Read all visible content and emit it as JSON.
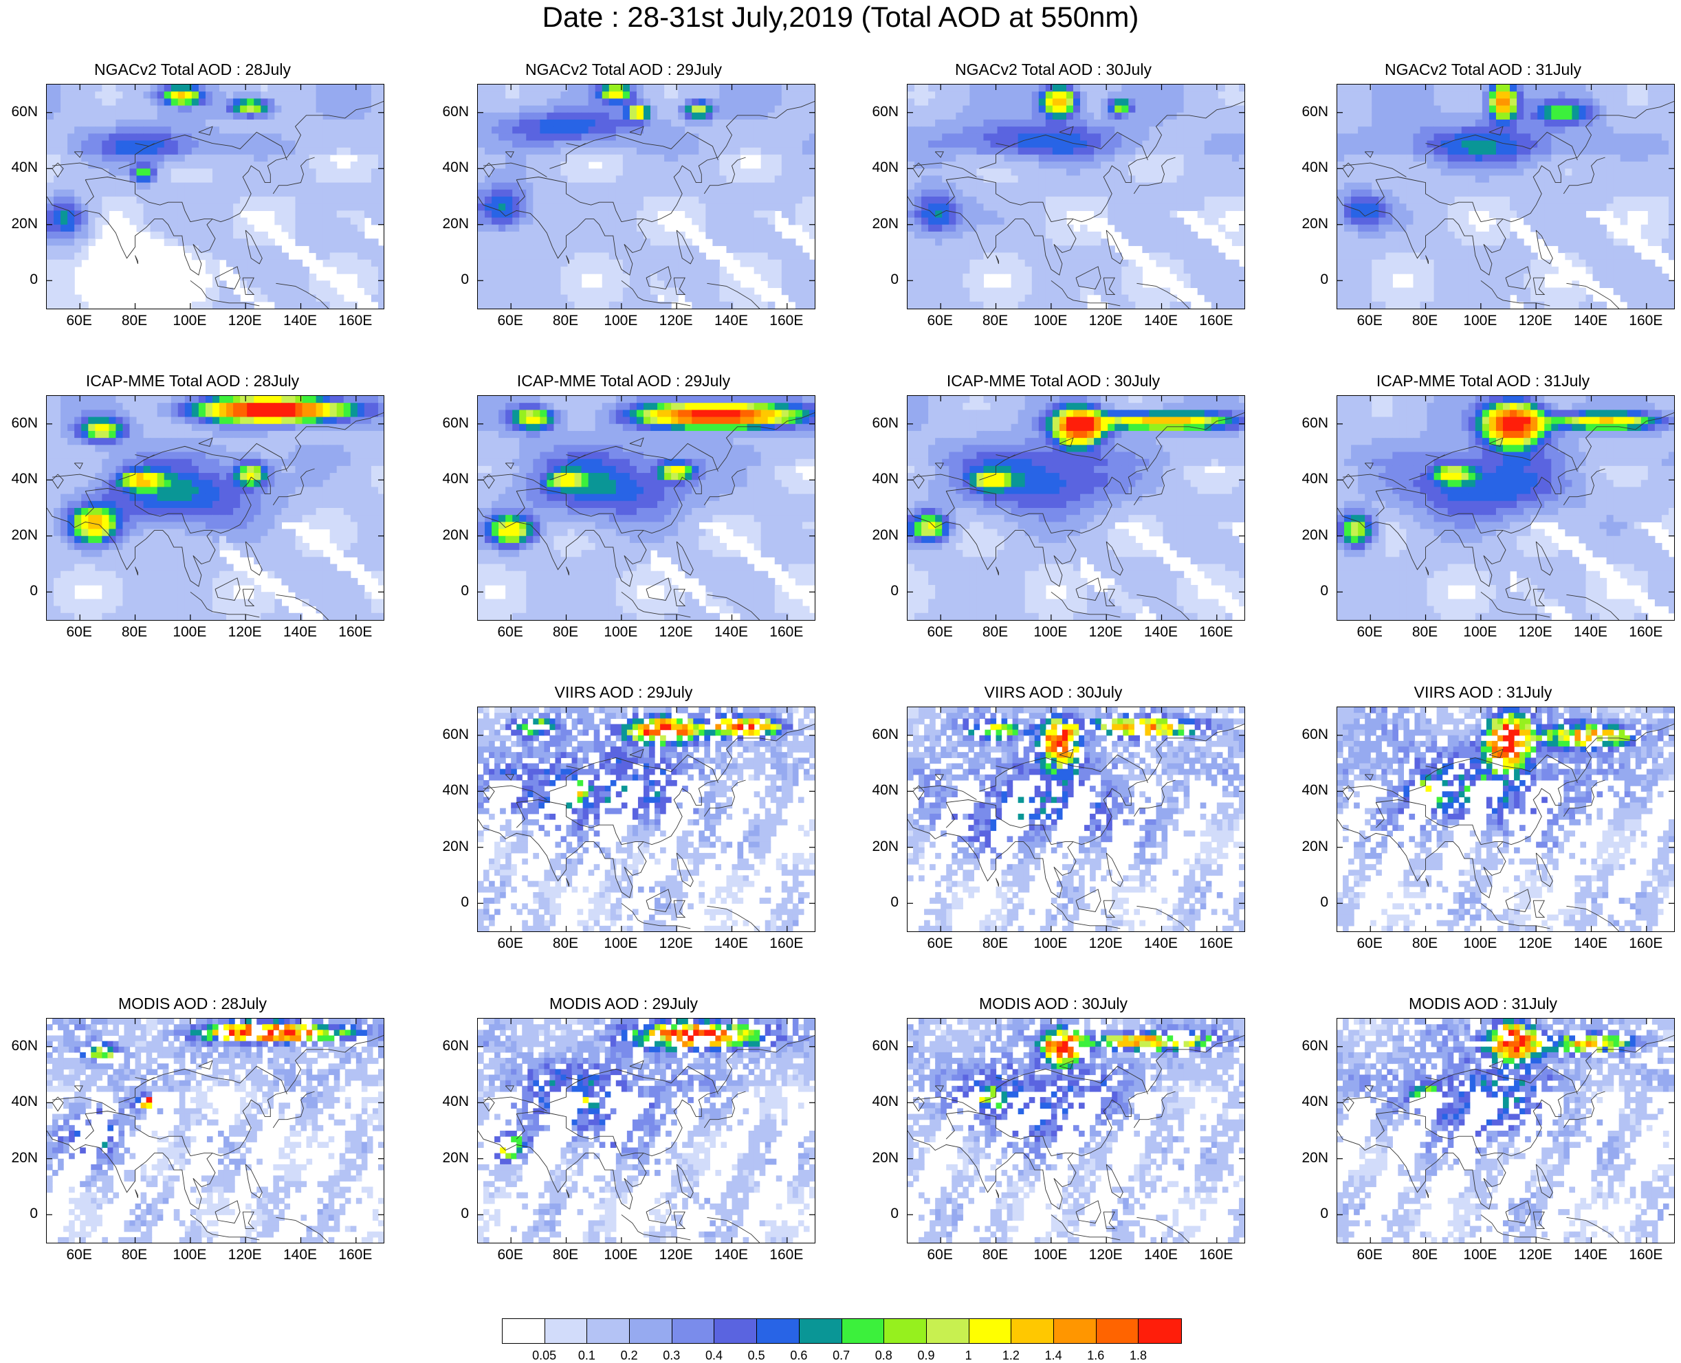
{
  "title": "Date : 28-31st July,2019 (Total AOD at 550nm)",
  "panels": [
    {
      "title": "NGACv2 Total AOD : 28July",
      "row": 0,
      "col": 0,
      "dataset": "ngac",
      "day": 28
    },
    {
      "title": "NGACv2 Total AOD : 29July",
      "row": 0,
      "col": 1,
      "dataset": "ngac",
      "day": 29
    },
    {
      "title": "NGACv2 Total AOD : 30July",
      "row": 0,
      "col": 2,
      "dataset": "ngac",
      "day": 30
    },
    {
      "title": "NGACv2 Total AOD : 31July",
      "row": 0,
      "col": 3,
      "dataset": "ngac",
      "day": 31
    },
    {
      "title": "ICAP-MME Total AOD : 28July",
      "row": 1,
      "col": 0,
      "dataset": "icap",
      "day": 28
    },
    {
      "title": "ICAP-MME Total AOD : 29July",
      "row": 1,
      "col": 1,
      "dataset": "icap",
      "day": 29
    },
    {
      "title": "ICAP-MME Total AOD : 30July",
      "row": 1,
      "col": 2,
      "dataset": "icap",
      "day": 30
    },
    {
      "title": "ICAP-MME Total AOD : 31July",
      "row": 1,
      "col": 3,
      "dataset": "icap",
      "day": 31
    },
    {
      "title": "VIIRS AOD : 29July",
      "row": 2,
      "col": 1,
      "dataset": "viirs",
      "day": 29
    },
    {
      "title": "VIIRS AOD : 30July",
      "row": 2,
      "col": 2,
      "dataset": "viirs",
      "day": 30
    },
    {
      "title": "VIIRS AOD : 31July",
      "row": 2,
      "col": 3,
      "dataset": "viirs",
      "day": 31
    },
    {
      "title": "MODIS AOD : 28July",
      "row": 3,
      "col": 0,
      "dataset": "modis",
      "day": 28
    },
    {
      "title": "MODIS AOD : 29July",
      "row": 3,
      "col": 1,
      "dataset": "modis",
      "day": 29
    },
    {
      "title": "MODIS AOD : 30July",
      "row": 3,
      "col": 2,
      "dataset": "modis",
      "day": 30
    },
    {
      "title": "MODIS AOD : 31July",
      "row": 3,
      "col": 3,
      "dataset": "modis",
      "day": 31
    }
  ],
  "axes": {
    "lon_range": [
      48,
      170
    ],
    "lat_range": [
      -10,
      70
    ],
    "xticks": [
      60,
      80,
      100,
      120,
      140,
      160
    ],
    "xtick_labels": [
      "60E",
      "80E",
      "100E",
      "120E",
      "140E",
      "160E"
    ],
    "yticks": [
      0,
      20,
      40,
      60
    ],
    "ytick_labels": [
      "0",
      "20N",
      "40N",
      "60N"
    ]
  },
  "colorbar": {
    "labels": [
      "0.05",
      "0.1",
      "0.2",
      "0.3",
      "0.4",
      "0.5",
      "0.6",
      "0.7",
      "0.8",
      "0.9",
      "1",
      "1.2",
      "1.4",
      "1.6",
      "1.8"
    ],
    "colors": [
      "#ffffff",
      "#d2dcfa",
      "#b4c3f5",
      "#96aaf0",
      "#7a8ceb",
      "#5a64e0",
      "#2864e6",
      "#0a9696",
      "#3cf03c",
      "#96f01e",
      "#c8f050",
      "#ffff00",
      "#ffc800",
      "#ff9600",
      "#ff6400",
      "#ff1e0a"
    ]
  },
  "plumes": {
    "ngac": {
      "28": [
        [
          -1,
          80,
          0.35,
          14,
          10
        ],
        [
          1,
          97,
          66,
          7,
          3
        ],
        [
          0.9,
          122,
          62,
          7,
          3
        ],
        [
          0.7,
          83,
          38,
          4,
          3
        ],
        [
          0.5,
          55,
          22,
          8,
          7
        ],
        [
          0.4,
          85,
          48,
          20,
          6
        ]
      ],
      "29": [
        [
          0.9,
          98,
          67,
          6,
          3
        ],
        [
          1,
          106,
          60,
          4,
          3
        ],
        [
          0.9,
          128,
          61,
          5,
          3
        ],
        [
          0.55,
          57,
          26,
          10,
          8
        ],
        [
          0.4,
          80,
          55,
          25,
          6
        ]
      ],
      "30": [
        [
          1.3,
          103,
          64,
          6,
          5
        ],
        [
          0.7,
          125,
          62,
          4,
          3
        ],
        [
          0.55,
          58,
          24,
          10,
          8
        ],
        [
          0.4,
          95,
          50,
          30,
          7
        ]
      ],
      "31": [
        [
          1.4,
          108,
          64,
          5,
          6
        ],
        [
          0.6,
          130,
          60,
          10,
          4
        ],
        [
          0.5,
          57,
          25,
          9,
          7
        ],
        [
          0.4,
          100,
          48,
          30,
          8
        ]
      ]
    },
    "icap": {
      "28": [
        [
          2.0,
          130,
          65,
          25,
          4
        ],
        [
          0.9,
          68,
          58,
          8,
          4
        ],
        [
          0.9,
          82,
          40,
          7,
          3
        ],
        [
          0.9,
          122,
          42,
          6,
          4
        ],
        [
          1.1,
          65,
          24,
          8,
          6
        ],
        [
          0.5,
          95,
          35,
          30,
          12
        ]
      ],
      "29": [
        [
          2.0,
          135,
          63,
          25,
          4
        ],
        [
          0.9,
          68,
          62,
          8,
          4
        ],
        [
          1.0,
          60,
          22,
          8,
          5
        ],
        [
          0.9,
          120,
          43,
          6,
          3
        ],
        [
          0.7,
          80,
          40,
          6,
          3
        ],
        [
          0.5,
          95,
          38,
          30,
          12
        ]
      ],
      "30": [
        [
          1.9,
          110,
          59,
          8,
          6
        ],
        [
          1.2,
          140,
          61,
          25,
          3
        ],
        [
          0.9,
          56,
          23,
          7,
          5
        ],
        [
          0.8,
          78,
          40,
          6,
          3
        ],
        [
          0.5,
          95,
          40,
          30,
          12
        ]
      ],
      "31": [
        [
          2.0,
          112,
          60,
          10,
          7
        ],
        [
          1.0,
          145,
          61,
          20,
          3
        ],
        [
          0.9,
          55,
          22,
          6,
          6
        ],
        [
          0.8,
          90,
          42,
          6,
          3
        ],
        [
          0.5,
          100,
          38,
          30,
          12
        ]
      ]
    },
    "viirs": {
      "29": [
        [
          1.9,
          115,
          62,
          12,
          4
        ],
        [
          1.6,
          145,
          63,
          12,
          3
        ],
        [
          1.4,
          82,
          40,
          4,
          3
        ],
        [
          0.8,
          68,
          63,
          8,
          3
        ],
        [
          0.4,
          90,
          40,
          40,
          15
        ]
      ],
      "30": [
        [
          2.0,
          103,
          58,
          6,
          7
        ],
        [
          1.2,
          135,
          63,
          20,
          3
        ],
        [
          0.8,
          80,
          62,
          10,
          3
        ],
        [
          0.4,
          95,
          35,
          40,
          15
        ]
      ],
      "31": [
        [
          2.0,
          110,
          58,
          7,
          8
        ],
        [
          1.2,
          140,
          60,
          15,
          4
        ],
        [
          0.8,
          80,
          40,
          6,
          3
        ],
        [
          0.4,
          100,
          40,
          40,
          15
        ]
      ]
    },
    "modis": {
      "28": [
        [
          2.0,
          130,
          65,
          22,
          3
        ],
        [
          1.8,
          85,
          40,
          4,
          2
        ],
        [
          0.9,
          68,
          58,
          6,
          3
        ],
        [
          0.4,
          65,
          28,
          12,
          12
        ]
      ],
      "29": [
        [
          2.0,
          128,
          64,
          18,
          4
        ],
        [
          1.6,
          82,
          40,
          4,
          2
        ],
        [
          0.9,
          60,
          24,
          6,
          4
        ],
        [
          0.4,
          90,
          40,
          30,
          15
        ]
      ],
      "30": [
        [
          2.0,
          104,
          60,
          6,
          5
        ],
        [
          1.2,
          135,
          62,
          20,
          3
        ],
        [
          0.8,
          78,
          42,
          5,
          3
        ],
        [
          0.4,
          95,
          40,
          30,
          15
        ]
      ],
      "31": [
        [
          2.0,
          112,
          62,
          8,
          6
        ],
        [
          1.0,
          140,
          61,
          15,
          3
        ],
        [
          0.8,
          80,
          43,
          5,
          3
        ],
        [
          0.4,
          100,
          40,
          30,
          15
        ]
      ]
    }
  }
}
